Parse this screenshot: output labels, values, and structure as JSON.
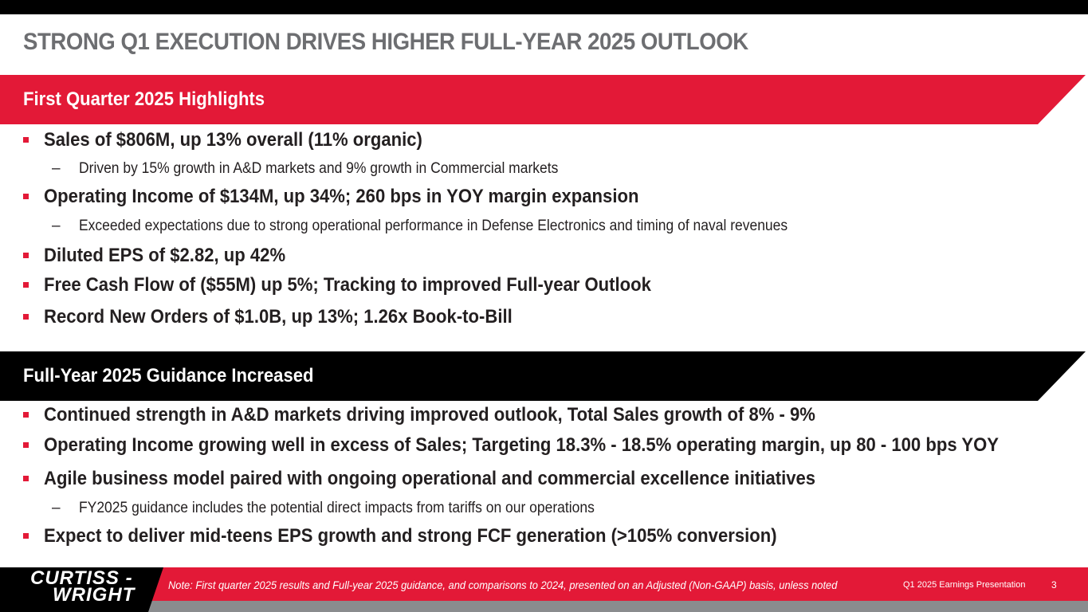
{
  "title": "STRONG Q1 EXECUTION DRIVES HIGHER FULL-YEAR 2025 OUTLOOK",
  "colors": {
    "accent_red": "#e31937",
    "black": "#000000",
    "title_gray": "#6d6e71",
    "footer_gray": "#8a8c8e"
  },
  "section1": {
    "heading": "First Quarter 2025 Highlights",
    "items": [
      {
        "level": 1,
        "text": "Sales of $806M, up 13% overall (11% organic)"
      },
      {
        "level": 2,
        "text": "Driven by 15% growth in A&D markets and 9% growth in Commercial markets"
      },
      {
        "level": 1,
        "text": "Operating Income of $134M, up 34%; 260 bps in YOY margin expansion"
      },
      {
        "level": 2,
        "text": "Exceeded expectations due to strong operational performance in Defense Electronics and timing of naval revenues"
      },
      {
        "level": 1,
        "text": "Diluted EPS of $2.82, up 42%"
      },
      {
        "level": 1,
        "text": "Free Cash Flow of ($55M) up 5%; Tracking to improved Full-year Outlook"
      },
      {
        "level": 1,
        "text": "Record New Orders of $1.0B, up 13%; 1.26x Book-to-Bill"
      }
    ]
  },
  "section2": {
    "heading": "Full-Year 2025 Guidance Increased",
    "items": [
      {
        "level": 1,
        "text": "Continued strength in A&D markets driving improved outlook, Total Sales growth of 8% - 9%"
      },
      {
        "level": 1,
        "text": "Operating Income growing well in excess of Sales; Targeting 18.3% - 18.5% operating margin, up 80 - 100 bps YOY"
      },
      {
        "level": 1,
        "text": "Agile business model paired with ongoing operational and commercial excellence initiatives"
      },
      {
        "level": 2,
        "text": "FY2025 guidance includes the potential direct impacts from tariffs on our operations"
      },
      {
        "level": 1,
        "text": "Expect to deliver mid-teens EPS growth and strong FCF generation (>105% conversion)"
      }
    ]
  },
  "footer": {
    "logo_line1": "CURTISS -",
    "logo_line2": "WRIGHT",
    "note": "Note: First quarter 2025 results and Full-year 2025 guidance, and comparisons to 2024, presented on an Adjusted (Non-GAAP) basis, unless noted",
    "presentation": "Q1 2025 Earnings Presentation",
    "page": "3"
  }
}
